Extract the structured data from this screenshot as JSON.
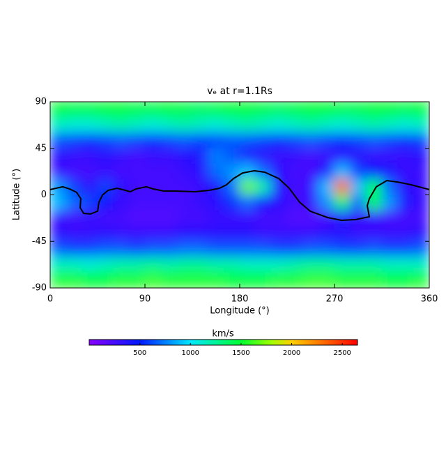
{
  "chart_data": {
    "type": "heatmap",
    "title": "vₑ at r=1.1Rs",
    "x_label": "Longitude (°)",
    "y_label": "Latitude (°)",
    "xlim": [
      0,
      360
    ],
    "ylim": [
      -90,
      90
    ],
    "xticks": [
      0,
      90,
      180,
      270,
      360
    ],
    "yticks": [
      -90,
      -45,
      0,
      45,
      90
    ],
    "x": [
      7.5,
      22.5,
      37.5,
      52.5,
      67.5,
      82.5,
      97.5,
      112.5,
      127.5,
      142.5,
      157.5,
      172.5,
      187.5,
      202.5,
      217.5,
      232.5,
      247.5,
      262.5,
      277.5,
      292.5,
      307.5,
      322.5,
      337.5,
      352.5
    ],
    "y": [
      82.5,
      67.5,
      52.5,
      37.5,
      22.5,
      7.5,
      -7.5,
      -22.5,
      -37.5,
      -52.5,
      -67.5,
      -82.5
    ],
    "z": [
      [
        1500,
        1450,
        1450,
        1500,
        1500,
        1450,
        1450,
        1500,
        1450,
        1400,
        1450,
        1500,
        1500,
        1450,
        1400,
        1450,
        1500,
        1500,
        1450,
        1450,
        1500,
        1500,
        1450,
        1500
      ],
      [
        1150,
        1100,
        1100,
        1150,
        1200,
        1150,
        1100,
        1150,
        1200,
        1150,
        1100,
        1150,
        1200,
        1150,
        1100,
        1150,
        1200,
        1150,
        1100,
        1150,
        1200,
        1150,
        1100,
        1150
      ],
      [
        650,
        600,
        550,
        600,
        650,
        600,
        550,
        600,
        650,
        600,
        600,
        650,
        650,
        600,
        550,
        600,
        650,
        600,
        550,
        600,
        650,
        600,
        550,
        600
      ],
      [
        350,
        300,
        300,
        350,
        300,
        250,
        300,
        300,
        350,
        400,
        750,
        650,
        400,
        350,
        300,
        300,
        250,
        300,
        350,
        350,
        300,
        300,
        300,
        350
      ],
      [
        300,
        250,
        250,
        300,
        250,
        250,
        250,
        250,
        300,
        350,
        700,
        800,
        900,
        700,
        350,
        250,
        250,
        400,
        900,
        600,
        500,
        400,
        300,
        300
      ],
      [
        800,
        600,
        350,
        600,
        350,
        250,
        250,
        250,
        250,
        300,
        400,
        700,
        1700,
        1200,
        400,
        250,
        300,
        900,
        2300,
        900,
        1500,
        700,
        350,
        300
      ],
      [
        900,
        700,
        600,
        500,
        300,
        250,
        250,
        250,
        250,
        300,
        350,
        550,
        700,
        500,
        350,
        250,
        300,
        800,
        1400,
        700,
        1500,
        800,
        400,
        300
      ],
      [
        300,
        250,
        300,
        250,
        250,
        200,
        200,
        200,
        250,
        250,
        300,
        300,
        300,
        250,
        250,
        200,
        200,
        250,
        400,
        300,
        300,
        250,
        250,
        250
      ],
      [
        350,
        300,
        300,
        350,
        300,
        300,
        300,
        300,
        350,
        350,
        350,
        350,
        350,
        300,
        300,
        300,
        300,
        350,
        350,
        300,
        300,
        300,
        300,
        350
      ],
      [
        650,
        600,
        600,
        650,
        650,
        600,
        650,
        650,
        700,
        700,
        650,
        650,
        650,
        650,
        600,
        600,
        650,
        650,
        600,
        600,
        650,
        600,
        600,
        650
      ],
      [
        1150,
        1150,
        1100,
        1150,
        1200,
        1200,
        1250,
        1200,
        1250,
        1250,
        1200,
        1200,
        1150,
        1150,
        1150,
        1200,
        1250,
        1250,
        1200,
        1200,
        1200,
        1150,
        1150,
        1150
      ],
      [
        1550,
        1550,
        1500,
        1500,
        1550,
        1550,
        1600,
        1550,
        1550,
        1550,
        1550,
        1500,
        1500,
        1500,
        1550,
        1550,
        1600,
        1600,
        1550,
        1550,
        1550,
        1500,
        1500,
        1550
      ]
    ],
    "colormap": [
      [
        0,
        "#8a00ff"
      ],
      [
        500,
        "#0018ff"
      ],
      [
        1000,
        "#00e8ff"
      ],
      [
        1500,
        "#00ff30"
      ],
      [
        1800,
        "#a0ff00"
      ],
      [
        2000,
        "#ffd000"
      ],
      [
        2650,
        "#ff0000"
      ]
    ],
    "colorbar_label": "km/s",
    "clim": [
      0,
      2650
    ],
    "cticks": [
      500,
      1000,
      1500,
      2000,
      2500
    ],
    "contour": {
      "color": "#000000",
      "x": [
        0,
        11.9,
        18.5,
        25.1,
        29.1,
        28.5,
        31.8,
        38.4,
        45,
        46.3,
        49.6,
        54.9,
        63.5,
        71.5,
        76.1,
        81.4,
        91.3,
        97.9,
        107.9,
        117.8,
        137.7,
        150.9,
        160.8,
        167.4,
        174.1,
        182.7,
        193.9,
        203.8,
        217.1,
        227,
        236.9,
        246.9,
        263.4,
        276.6,
        289.9,
        303.1,
        301.1,
        303.1,
        309.7,
        319.7,
        329.6,
        342.8,
        360
      ],
      "y": [
        5.1,
        7.8,
        5.7,
        2.4,
        -3.7,
        -12.5,
        -17.9,
        -18.5,
        -15.8,
        -7.1,
        -0.3,
        4.4,
        6.4,
        4.4,
        3,
        5.7,
        7.8,
        5.7,
        3.7,
        3.7,
        3,
        4.4,
        6.4,
        9.8,
        15.8,
        21.2,
        23.3,
        21.9,
        15.8,
        6.4,
        -7.1,
        -15.8,
        -21.9,
        -24.6,
        -23.9,
        -21.2,
        -10.5,
        -3.7,
        7.8,
        13.8,
        12.5,
        9.8,
        5.1
      ]
    }
  }
}
